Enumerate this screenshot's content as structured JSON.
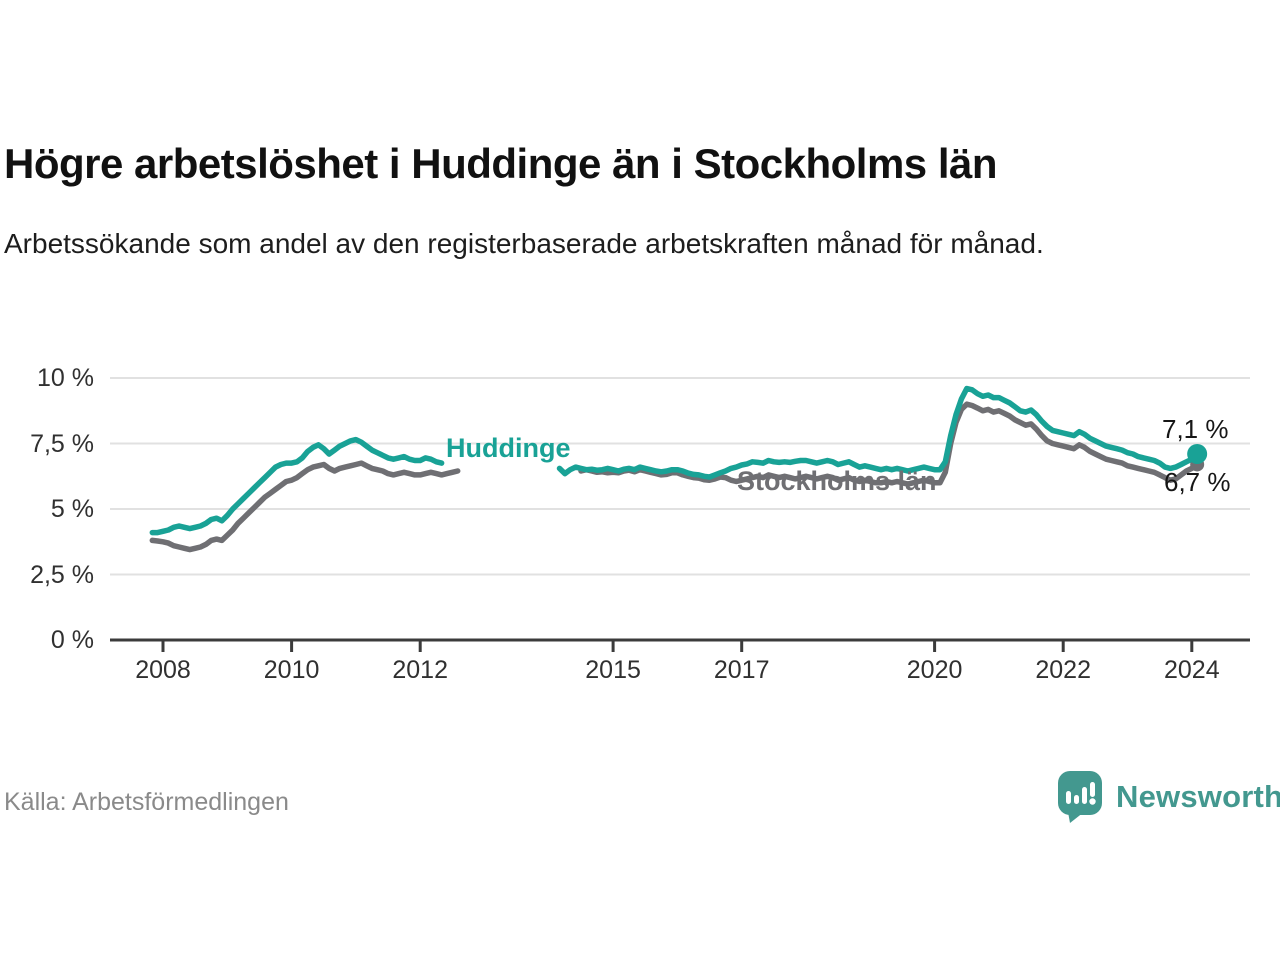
{
  "title": "Högre arbetslöshet i Huddinge än i Stockholms län",
  "subtitle": "Arbetssökande som andel av den registerbaserade arbetskraften månad för månad.",
  "source": "Källa: Arbetsförmedlingen",
  "brand": {
    "name": "Newsworthy",
    "icon": "speech-bubble-bar-chart-icon",
    "color": "#43988f"
  },
  "colors": {
    "huddinge": "#19a296",
    "stockholm": "#6f6f73",
    "grid": "#e1e1e1",
    "axis": "#3b3b3b",
    "label_text": "#161616",
    "muted_text": "#8a8a8a"
  },
  "chart_data": {
    "type": "line",
    "title": "Högre arbetslöshet i Huddinge än i Stockholms län",
    "frequency": "monthly",
    "x_start": {
      "year": 2007,
      "month": 11
    },
    "x_end": {
      "year": 2024,
      "month": 2
    },
    "ylim": [
      0,
      10
    ],
    "grid": true,
    "yticks": [
      {
        "label": "0 %",
        "value": 0
      },
      {
        "label": "2,5 %",
        "value": 2.5
      },
      {
        "label": "5 %",
        "value": 5
      },
      {
        "label": "7,5 %",
        "value": 7.5
      },
      {
        "label": "10 %",
        "value": 10
      }
    ],
    "xticks": [
      {
        "label": "2008",
        "year": 2008
      },
      {
        "label": "2010",
        "year": 2010
      },
      {
        "label": "2012",
        "year": 2012
      },
      {
        "label": "2015",
        "year": 2015
      },
      {
        "label": "2017",
        "year": 2017
      },
      {
        "label": "2020",
        "year": 2020
      },
      {
        "label": "2022",
        "year": 2022
      },
      {
        "label": "2024",
        "year": 2024
      }
    ],
    "series": [
      {
        "name": "Huddinge",
        "color": "#19a296",
        "end_value": 7.1,
        "end_label": "7,1 %",
        "values": [
          4.1,
          4.1,
          4.15,
          4.2,
          4.3,
          4.35,
          4.3,
          4.25,
          4.3,
          4.35,
          4.45,
          4.6,
          4.65,
          4.55,
          4.75,
          5.0,
          5.2,
          5.4,
          5.6,
          5.8,
          6.0,
          6.2,
          6.4,
          6.6,
          6.7,
          6.75,
          6.75,
          6.8,
          6.95,
          7.2,
          7.35,
          7.45,
          7.3,
          7.1,
          7.25,
          7.4,
          7.5,
          7.6,
          7.65,
          7.55,
          7.4,
          7.25,
          7.15,
          7.05,
          6.95,
          6.9,
          6.95,
          7.0,
          6.9,
          6.85,
          6.85,
          6.95,
          6.9,
          6.8,
          6.75,
          null,
          null,
          null,
          null,
          null,
          null,
          null,
          null,
          null,
          null,
          null,
          null,
          null,
          null,
          null,
          null,
          null,
          null,
          null,
          null,
          null,
          6.55,
          6.35,
          6.5,
          6.6,
          6.55,
          6.5,
          6.52,
          6.48,
          6.5,
          6.55,
          6.5,
          6.45,
          6.52,
          6.55,
          6.5,
          6.6,
          6.55,
          6.5,
          6.45,
          6.42,
          6.45,
          6.5,
          6.5,
          6.45,
          6.37,
          6.32,
          6.3,
          6.25,
          6.22,
          6.3,
          6.38,
          6.45,
          6.55,
          6.6,
          6.68,
          6.72,
          6.8,
          6.78,
          6.75,
          6.85,
          6.8,
          6.78,
          6.8,
          6.78,
          6.82,
          6.85,
          6.85,
          6.8,
          6.75,
          6.8,
          6.85,
          6.8,
          6.7,
          6.75,
          6.8,
          6.7,
          6.6,
          6.65,
          6.6,
          6.55,
          6.5,
          6.55,
          6.5,
          6.55,
          6.5,
          6.45,
          6.5,
          6.55,
          6.6,
          6.55,
          6.5,
          6.5,
          6.8,
          7.8,
          8.6,
          9.2,
          9.6,
          9.55,
          9.4,
          9.3,
          9.35,
          9.25,
          9.25,
          9.15,
          9.05,
          8.9,
          8.75,
          8.7,
          8.78,
          8.6,
          8.35,
          8.15,
          8.0,
          7.95,
          7.9,
          7.85,
          7.8,
          7.95,
          7.85,
          7.7,
          7.6,
          7.5,
          7.4,
          7.35,
          7.3,
          7.25,
          7.15,
          7.1,
          7.0,
          6.95,
          6.9,
          6.85,
          6.75,
          6.6,
          6.55,
          6.6,
          6.7,
          6.8,
          6.9,
          7.1
        ]
      },
      {
        "name": "Stockholms län",
        "color": "#6f6f73",
        "end_value": 6.7,
        "end_label": "6,7 %",
        "values": [
          3.8,
          3.78,
          3.75,
          3.7,
          3.6,
          3.55,
          3.5,
          3.45,
          3.5,
          3.55,
          3.65,
          3.8,
          3.85,
          3.8,
          4.0,
          4.2,
          4.45,
          4.65,
          4.85,
          5.05,
          5.25,
          5.45,
          5.6,
          5.75,
          5.9,
          6.05,
          6.1,
          6.2,
          6.35,
          6.5,
          6.6,
          6.65,
          6.7,
          6.55,
          6.45,
          6.55,
          6.6,
          6.65,
          6.7,
          6.75,
          6.65,
          6.55,
          6.5,
          6.45,
          6.35,
          6.3,
          6.35,
          6.4,
          6.35,
          6.3,
          6.3,
          6.35,
          6.4,
          6.35,
          6.3,
          6.35,
          6.4,
          6.45,
          null,
          null,
          null,
          null,
          null,
          null,
          null,
          null,
          null,
          null,
          null,
          null,
          null,
          null,
          null,
          null,
          null,
          null,
          null,
          null,
          null,
          null,
          6.45,
          6.5,
          6.45,
          6.4,
          6.42,
          6.38,
          6.4,
          6.38,
          6.45,
          6.48,
          6.42,
          6.5,
          6.45,
          6.4,
          6.35,
          6.3,
          6.32,
          6.38,
          6.38,
          6.3,
          6.25,
          6.2,
          6.18,
          6.12,
          6.1,
          6.15,
          6.22,
          6.2,
          6.1,
          6.05,
          6.1,
          6.15,
          6.2,
          6.25,
          6.2,
          6.3,
          6.25,
          6.2,
          6.25,
          6.2,
          6.15,
          6.2,
          6.25,
          6.2,
          6.15,
          6.2,
          6.25,
          6.2,
          6.1,
          6.15,
          6.2,
          6.1,
          6.05,
          6.1,
          6.05,
          6.0,
          6.0,
          6.05,
          6.0,
          6.05,
          6.0,
          5.95,
          6.0,
          6.05,
          6.1,
          6.05,
          6.0,
          6.0,
          6.4,
          7.5,
          8.3,
          8.8,
          9.0,
          8.95,
          8.85,
          8.75,
          8.8,
          8.7,
          8.75,
          8.65,
          8.55,
          8.4,
          8.3,
          8.2,
          8.25,
          8.05,
          7.8,
          7.6,
          7.5,
          7.45,
          7.4,
          7.35,
          7.3,
          7.45,
          7.35,
          7.2,
          7.1,
          7.0,
          6.9,
          6.85,
          6.8,
          6.75,
          6.65,
          6.6,
          6.55,
          6.5,
          6.45,
          6.4,
          6.3,
          6.2,
          6.1,
          6.15,
          6.3,
          6.45,
          6.55,
          6.7
        ]
      }
    ],
    "legend_position": "inline-labels"
  }
}
